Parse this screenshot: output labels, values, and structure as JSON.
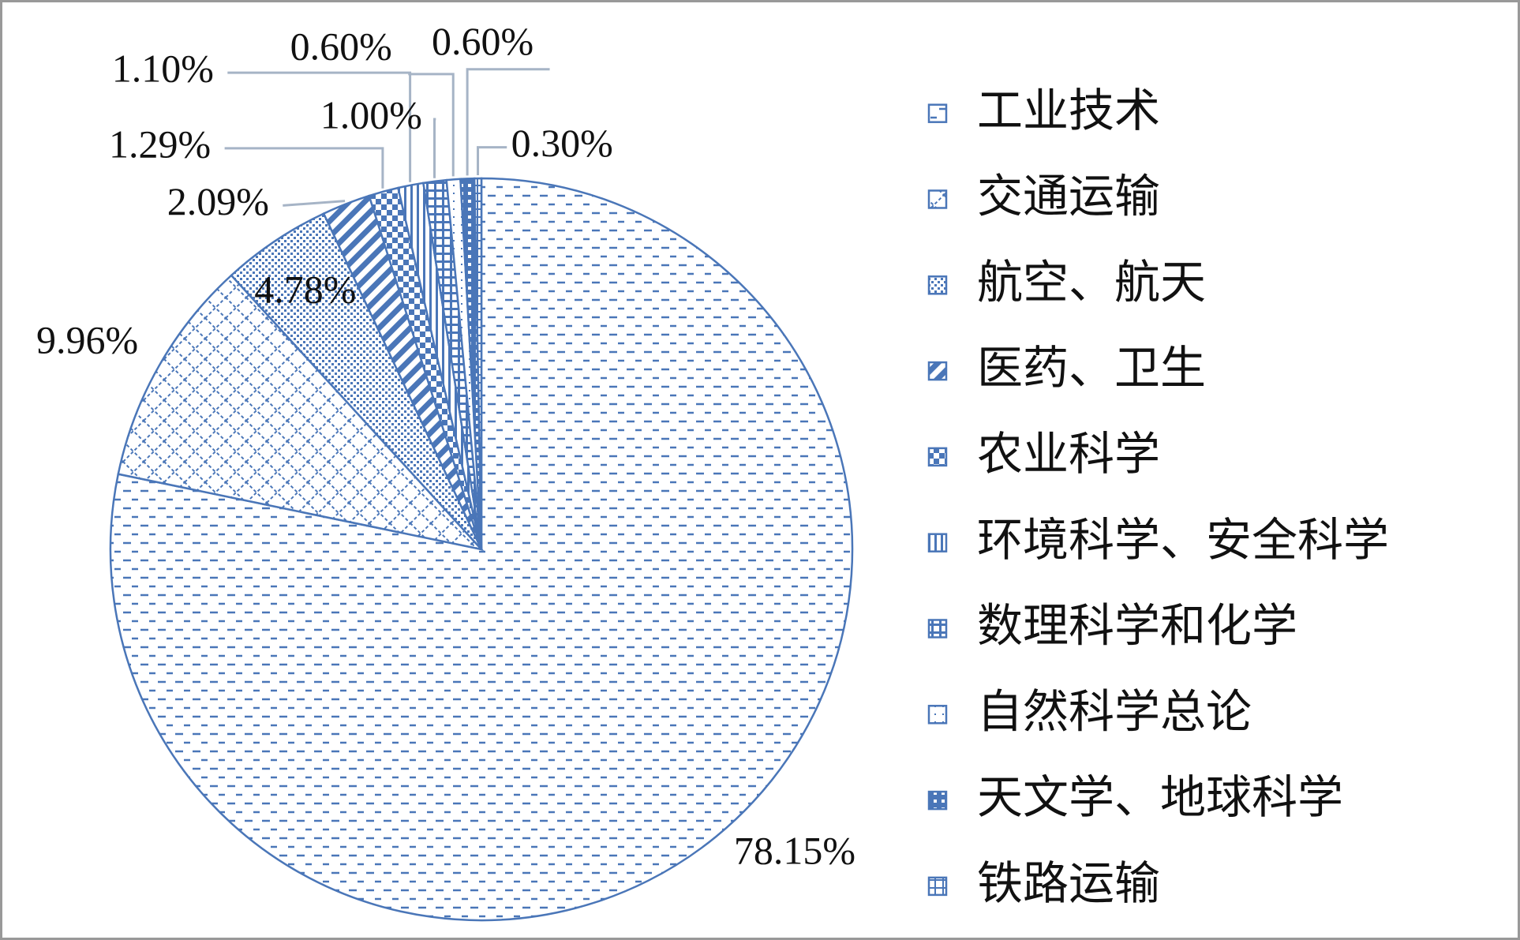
{
  "chart_data": {
    "type": "pie",
    "categories": [
      "工业技术",
      "交通运输",
      "航空、航天",
      "医药、卫生",
      "农业科学",
      "环境科学、安全科学",
      "数理科学和化学",
      "自然科学总论",
      "天文学、地球科学",
      "铁路运输"
    ],
    "values": [
      78.15,
      9.96,
      4.78,
      2.09,
      1.29,
      1.1,
      1.0,
      0.6,
      0.6,
      0.3
    ],
    "value_labels": [
      "78.15%",
      "9.96%",
      "4.78%",
      "2.09%",
      "1.29%",
      "1.10%",
      "1.00%",
      "0.60%",
      "0.60%",
      "0.30%"
    ],
    "color": "#4a76b8",
    "legend": "right"
  }
}
